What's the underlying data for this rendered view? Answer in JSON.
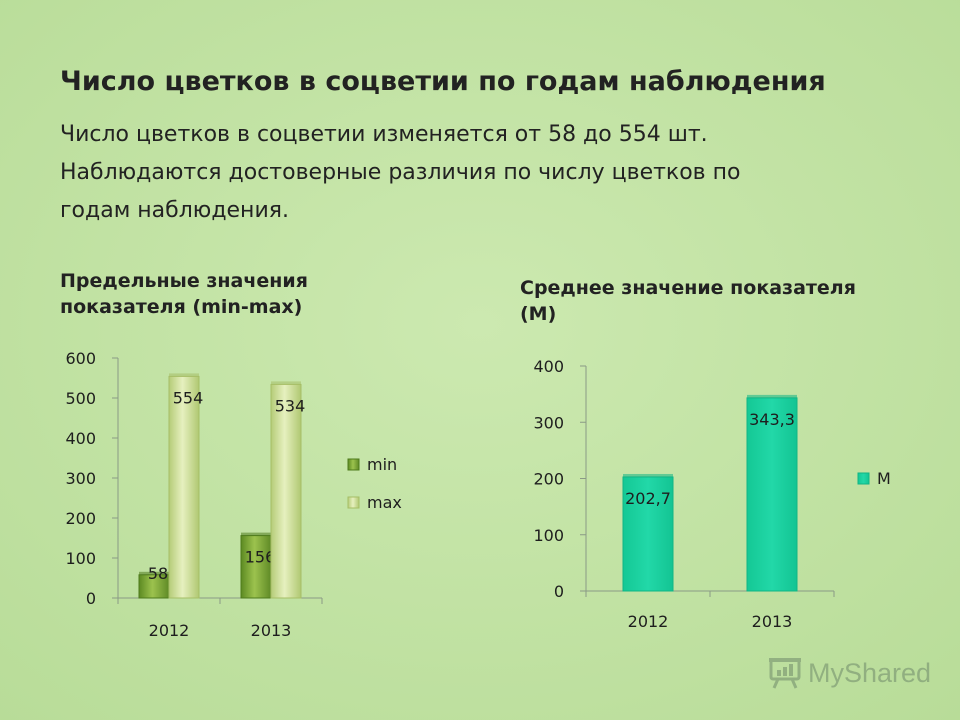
{
  "slide": {
    "title": "Число цветков в соцветии по годам наблюдения",
    "body_lines": [
      "Число цветков в соцветии изменяется от 58 до 554 шт.",
      "Наблюдаются достоверные различия по числу цветков по",
      "годам наблюдения."
    ],
    "background_color": "#c4e4a8"
  },
  "chart_data": [
    {
      "type": "bar",
      "heading_lines": [
        "Предельные значения",
        "показателя (min-max)"
      ],
      "categories": [
        "2012",
        "2013"
      ],
      "series": [
        {
          "name": "min",
          "values": [
            58,
            156
          ],
          "color": "#7ea83a"
        },
        {
          "name": "max",
          "values": [
            554,
            534
          ],
          "color": "#cddf9a"
        }
      ],
      "data_labels": [
        [
          "58",
          "156"
        ],
        [
          "554",
          "534"
        ]
      ],
      "y_ticks": [
        "0",
        "100",
        "200",
        "300",
        "400",
        "500",
        "600"
      ],
      "ylim": [
        0,
        600
      ],
      "grid": false,
      "legend": "right"
    },
    {
      "type": "bar",
      "heading_lines": [
        "Среднее значение показателя",
        "(М)"
      ],
      "categories": [
        "2012",
        "2013"
      ],
      "series": [
        {
          "name": "М",
          "values": [
            202.7,
            343.3
          ],
          "color": "#19d0a0"
        }
      ],
      "data_labels": [
        [
          "202,7",
          "343,3"
        ]
      ],
      "y_ticks": [
        "0",
        "100",
        "200",
        "300",
        "400"
      ],
      "ylim": [
        0,
        400
      ],
      "grid": false,
      "legend": "right"
    }
  ],
  "watermark": {
    "text": "MyShared",
    "icon": "presentation-board-icon"
  }
}
